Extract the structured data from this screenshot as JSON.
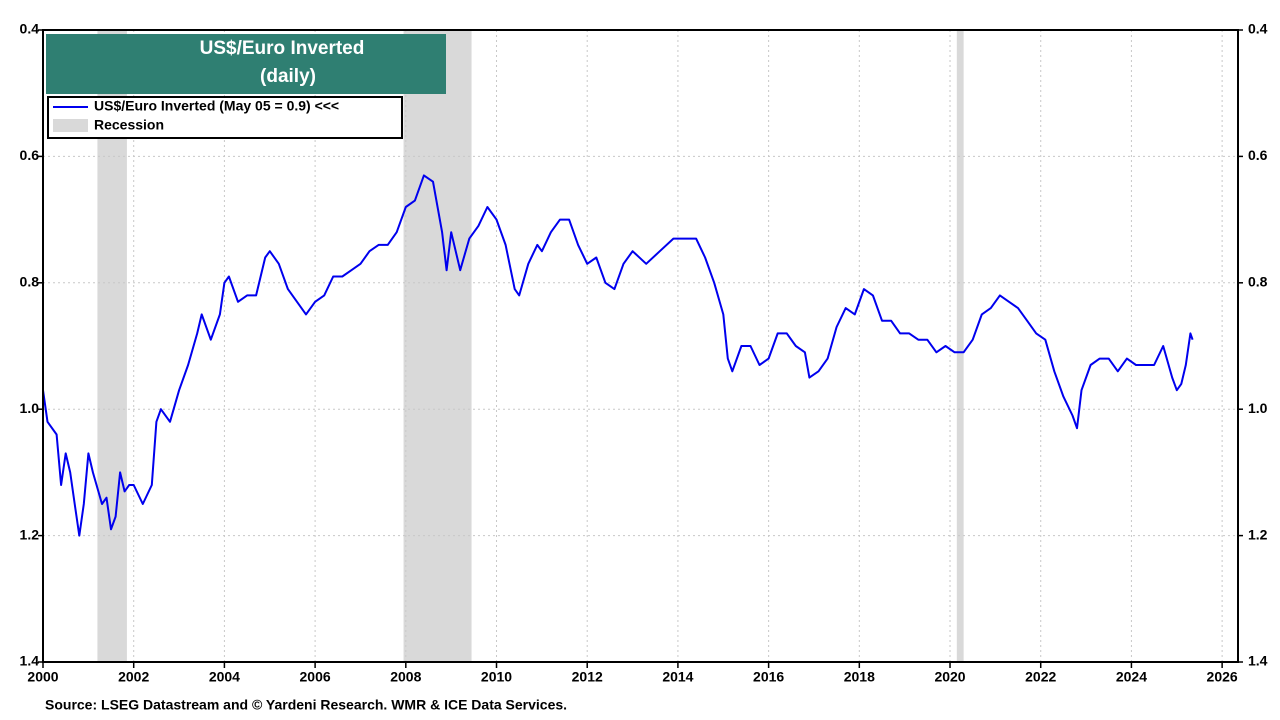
{
  "chart_data": {
    "type": "line",
    "title": "US$/Euro Inverted",
    "subtitle": "(daily)",
    "source": "Source: LSEG Datastream and © Yardeni Research. WMR & ICE Data Services.",
    "y_inverted": true,
    "grid": true,
    "legend": "upper left",
    "xlim": [
      2000,
      2026.35
    ],
    "xticks": [
      2000,
      2002,
      2004,
      2006,
      2008,
      2010,
      2012,
      2014,
      2016,
      2018,
      2020,
      2022,
      2024,
      2026
    ],
    "ylim": [
      0.4,
      1.4
    ],
    "yticks": [
      0.4,
      0.6,
      0.8,
      {
        "value": 1,
        "label": "1.0"
      },
      1.2,
      1.4
    ],
    "recessions": {
      "name": "Recession",
      "color": "#d9d9d9",
      "spans": [
        [
          2001.2,
          2001.85
        ],
        [
          2007.95,
          2009.45
        ],
        [
          2020.15,
          2020.3
        ]
      ]
    },
    "x": [
      2000.0,
      2000.1,
      2000.3,
      2000.4,
      2000.5,
      2000.6,
      2000.7,
      2000.8,
      2000.9,
      2001.0,
      2001.1,
      2001.3,
      2001.4,
      2001.5,
      2001.6,
      2001.7,
      2001.8,
      2001.9,
      2002.0,
      2002.2,
      2002.4,
      2002.5,
      2002.6,
      2002.8,
      2003.0,
      2003.2,
      2003.4,
      2003.5,
      2003.7,
      2003.9,
      2004.0,
      2004.1,
      2004.3,
      2004.5,
      2004.7,
      2004.9,
      2005.0,
      2005.2,
      2005.4,
      2005.6,
      2005.8,
      2006.0,
      2006.2,
      2006.4,
      2006.6,
      2006.8,
      2007.0,
      2007.2,
      2007.4,
      2007.6,
      2007.8,
      2008.0,
      2008.2,
      2008.4,
      2008.6,
      2008.8,
      2008.9,
      2009.0,
      2009.2,
      2009.4,
      2009.6,
      2009.8,
      2010.0,
      2010.2,
      2010.4,
      2010.5,
      2010.7,
      2010.9,
      2011.0,
      2011.2,
      2011.4,
      2011.6,
      2011.8,
      2012.0,
      2012.2,
      2012.4,
      2012.6,
      2012.8,
      2013.0,
      2013.3,
      2013.6,
      2013.9,
      2014.2,
      2014.4,
      2014.6,
      2014.8,
      2015.0,
      2015.1,
      2015.2,
      2015.4,
      2015.6,
      2015.8,
      2016.0,
      2016.2,
      2016.4,
      2016.6,
      2016.8,
      2016.9,
      2017.1,
      2017.3,
      2017.5,
      2017.7,
      2017.9,
      2018.1,
      2018.3,
      2018.5,
      2018.7,
      2018.9,
      2019.1,
      2019.3,
      2019.5,
      2019.7,
      2019.9,
      2020.1,
      2020.3,
      2020.5,
      2020.7,
      2020.9,
      2021.1,
      2021.3,
      2021.5,
      2021.7,
      2021.9,
      2022.1,
      2022.3,
      2022.5,
      2022.7,
      2022.8,
      2022.9,
      2023.1,
      2023.3,
      2023.5,
      2023.7,
      2023.9,
      2024.1,
      2024.3,
      2024.5,
      2024.7,
      2024.9,
      2025.0,
      2025.1,
      2025.2,
      2025.3,
      2025.35
    ],
    "series": [
      {
        "name": "US$/Euro Inverted (May 05 = 0.9) <<<",
        "color": "#0000ee",
        "values": [
          0.97,
          1.02,
          1.04,
          1.12,
          1.07,
          1.1,
          1.15,
          1.2,
          1.15,
          1.07,
          1.1,
          1.15,
          1.14,
          1.19,
          1.17,
          1.1,
          1.13,
          1.12,
          1.12,
          1.15,
          1.12,
          1.02,
          1.0,
          1.02,
          0.97,
          0.93,
          0.88,
          0.85,
          0.89,
          0.85,
          0.8,
          0.79,
          0.83,
          0.82,
          0.82,
          0.76,
          0.75,
          0.77,
          0.81,
          0.83,
          0.85,
          0.83,
          0.82,
          0.79,
          0.79,
          0.78,
          0.77,
          0.75,
          0.74,
          0.74,
          0.72,
          0.68,
          0.67,
          0.63,
          0.64,
          0.72,
          0.78,
          0.72,
          0.78,
          0.73,
          0.71,
          0.68,
          0.7,
          0.74,
          0.81,
          0.82,
          0.77,
          0.74,
          0.75,
          0.72,
          0.7,
          0.7,
          0.74,
          0.77,
          0.76,
          0.8,
          0.81,
          0.77,
          0.75,
          0.77,
          0.75,
          0.73,
          0.73,
          0.73,
          0.76,
          0.8,
          0.85,
          0.92,
          0.94,
          0.9,
          0.9,
          0.93,
          0.92,
          0.88,
          0.88,
          0.9,
          0.91,
          0.95,
          0.94,
          0.92,
          0.87,
          0.84,
          0.85,
          0.81,
          0.82,
          0.86,
          0.86,
          0.88,
          0.88,
          0.89,
          0.89,
          0.91,
          0.9,
          0.91,
          0.91,
          0.89,
          0.85,
          0.84,
          0.82,
          0.83,
          0.84,
          0.86,
          0.88,
          0.89,
          0.94,
          0.98,
          1.01,
          1.03,
          0.97,
          0.93,
          0.92,
          0.92,
          0.94,
          0.92,
          0.93,
          0.93,
          0.93,
          0.9,
          0.95,
          0.97,
          0.96,
          0.93,
          0.88,
          0.89
        ]
      }
    ]
  }
}
